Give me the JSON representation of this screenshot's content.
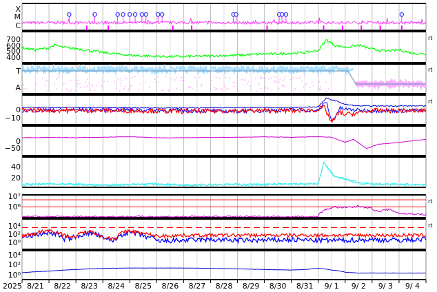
{
  "colors": {
    "xray": "#ff33ff",
    "mag_total": "#00ff00",
    "polarity_t": "#aadeff",
    "polarity_a": "#ffaaff",
    "bx": "#ff0000",
    "bz": "#0000ff",
    "bt": "#0000cc",
    "phi": "#cc00cc",
    "speed": "#00ffff",
    "proton": "#cc00cc",
    "electron_red": "#ff0000",
    "electron_blue": "#0000ff",
    "flux_line": "#0000cc",
    "flare_marker": "#3333ff",
    "event_bar": "#ff00ff",
    "threshold": "#ff0000"
  },
  "xaxis": {
    "year_label": "2025",
    "ticks": [
      "8/21",
      "8/22",
      "8/23",
      "8/24",
      "8/25",
      "8/26",
      "8/27",
      "8/28",
      "8/29",
      "8/30",
      "8/31",
      "9/ 1",
      "9/ 2",
      "9/ 3",
      "9/ 4"
    ]
  },
  "right_marker": "rt",
  "chart_data": [
    {
      "id": "xray",
      "type": "line",
      "ylabels": [
        "X",
        "M",
        "C"
      ],
      "flare_markers_day": [
        1.75,
        2.7,
        3.55,
        3.75,
        4.0,
        4.2,
        4.45,
        4.6,
        5.05,
        5.2,
        7.85,
        7.95,
        9.55,
        9.65,
        9.8,
        14.1
      ],
      "event_bars_day": [
        2.4,
        3.2,
        5.6,
        6.3,
        9.1,
        11.2,
        11.9,
        12.6,
        13.3,
        14.1
      ]
    },
    {
      "id": "mag_total",
      "type": "line",
      "ylabels": [
        "700",
        "600",
        "500",
        "400"
      ],
      "ylim": [
        300,
        760
      ],
      "series": [
        {
          "x": [
            0,
            0.5,
            1,
            1.2,
            1.5,
            2,
            2.5,
            3,
            3.5,
            4,
            4.5,
            5,
            5.5,
            6,
            6.5,
            7,
            7.5,
            8,
            8.5,
            9,
            9.5,
            10,
            10.5,
            11,
            11.3,
            11.6,
            12,
            12.5,
            13,
            13.5,
            14,
            14.5,
            15
          ],
          "y": [
            520,
            490,
            520,
            560,
            530,
            510,
            480,
            450,
            430,
            410,
            400,
            395,
            390,
            390,
            395,
            400,
            405,
            410,
            420,
            430,
            430,
            440,
            450,
            480,
            640,
            560,
            530,
            560,
            500,
            470,
            490,
            440,
            430
          ]
        }
      ]
    },
    {
      "id": "polarity",
      "type": "line",
      "ylabels": [
        "T",
        "A"
      ],
      "series": [
        {
          "name": "T",
          "x": [
            0,
            3,
            6,
            9,
            11,
            12.1,
            12.4,
            13,
            15
          ],
          "y": [
            1,
            1,
            1,
            1,
            1,
            1,
            0,
            0,
            0
          ]
        }
      ]
    },
    {
      "id": "bfield",
      "type": "line",
      "ylabels": [
        "0",
        "−10"
      ],
      "ylim": [
        -18,
        20
      ],
      "series": [
        {
          "name": "Bt",
          "x": [
            0,
            2,
            4,
            6,
            8,
            10,
            11,
            11.3,
            11.7,
            12,
            12.5,
            13,
            14,
            15
          ],
          "y": [
            4,
            4,
            3.5,
            3.5,
            4,
            4,
            5,
            16,
            12,
            8,
            6,
            6,
            6,
            6
          ]
        },
        {
          "name": "Bz",
          "x": [
            0,
            2,
            4,
            6,
            8,
            10,
            11,
            11.3,
            11.5,
            11.8,
            12.2,
            13,
            14,
            15
          ],
          "y": [
            0,
            1,
            1,
            0,
            -1,
            1,
            0,
            12,
            -15,
            3,
            1,
            0,
            0,
            0
          ]
        },
        {
          "name": "Bx",
          "x": [
            0,
            2,
            4,
            6,
            8,
            10,
            11,
            11.2,
            11.5,
            11.8,
            12,
            12.5,
            13,
            14,
            15
          ],
          "y": [
            1,
            0,
            0,
            -1,
            0,
            0,
            1,
            5,
            -15,
            -2,
            -5,
            -3,
            0,
            0,
            0
          ]
        }
      ]
    },
    {
      "id": "phi",
      "type": "line",
      "ylabels": [
        "0",
        "−50"
      ],
      "ylim": [
        -90,
        55
      ],
      "series": [
        {
          "x": [
            0,
            1,
            2,
            3,
            4,
            5,
            6,
            7,
            8,
            9,
            10,
            11,
            11.5,
            12,
            12.3,
            12.8,
            13.2,
            13.6,
            14,
            15
          ],
          "y": [
            -2,
            -1,
            -2,
            0,
            3,
            -3,
            -2,
            -1,
            0,
            2,
            0,
            3,
            0,
            -25,
            -10,
            -55,
            -35,
            -30,
            -25,
            -10
          ]
        }
      ]
    },
    {
      "id": "speed",
      "type": "line",
      "ylabels": [
        "40",
        "20"
      ],
      "ylim": [
        0,
        55
      ],
      "series": [
        {
          "x": [
            0,
            1,
            2,
            3,
            4,
            5,
            6,
            7,
            8,
            9,
            10,
            11,
            11.2,
            11.6,
            12,
            12.5,
            13,
            14,
            15
          ],
          "y": [
            5,
            6,
            5,
            4,
            5,
            6,
            4,
            5,
            5,
            5,
            6,
            6,
            45,
            20,
            15,
            8,
            6,
            5,
            5
          ]
        }
      ]
    },
    {
      "id": "proton",
      "type": "line",
      "ylabels": [
        "10⁷",
        "10⁶"
      ],
      "yscale": "log",
      "ylim": [
        30000,
        50000000
      ],
      "threshold_values": [
        10000000,
        1000000
      ],
      "series": [
        {
          "x": [
            0,
            2,
            4,
            5,
            6,
            8,
            10,
            11,
            11.3,
            11.6,
            12,
            12.5,
            12.8,
            13.2,
            13.6,
            14,
            15
          ],
          "y": [
            40000,
            40000,
            40000,
            40000,
            40000,
            40000,
            40000,
            40000,
            400000,
            1000000,
            700000,
            1200000,
            900000,
            200000,
            400000,
            120000,
            80000
          ]
        }
      ]
    },
    {
      "id": "electron",
      "type": "line",
      "ylabels": [
        "10⁴",
        "10²",
        "10⁰"
      ],
      "yscale": "log",
      "ylim": [
        0.05,
        50000
      ],
      "threshold_value": 1000,
      "series": [
        {
          "name": "red",
          "x": [
            0,
            0.5,
            1,
            1.5,
            2,
            2.5,
            3,
            3.5,
            4,
            4.5,
            5,
            6,
            7,
            8,
            9,
            10,
            11,
            12,
            13,
            14,
            15
          ],
          "y": [
            20,
            60,
            300,
            30,
            15,
            150,
            10,
            8,
            200,
            60,
            20,
            30,
            30,
            30,
            30,
            30,
            30,
            30,
            30,
            30,
            30
          ]
        },
        {
          "name": "blue",
          "x": [
            0,
            0.5,
            1,
            1.5,
            2,
            2.5,
            3,
            3.5,
            4,
            4.5,
            5,
            6,
            7,
            8,
            9,
            10,
            11,
            12,
            13,
            14,
            15
          ],
          "y": [
            10,
            30,
            100,
            5,
            10,
            80,
            5,
            3,
            100,
            20,
            2,
            3,
            4,
            3,
            3,
            4,
            3,
            3,
            4,
            3,
            5
          ]
        }
      ]
    },
    {
      "id": "flux",
      "type": "line",
      "ylabels": [
        "10⁴",
        "10²",
        "10⁰"
      ],
      "yscale": "log",
      "ylim": [
        0.01,
        300000
      ],
      "series": [
        {
          "x": [
            0,
            1,
            2,
            3,
            4,
            5,
            6,
            7,
            8,
            9,
            10,
            10.5,
            11,
            11.5,
            12,
            12.5,
            13,
            14,
            15
          ],
          "y": [
            0.6,
            1.5,
            4,
            8,
            10,
            10,
            10,
            8,
            6,
            4,
            3,
            4,
            8,
            3,
            0.8,
            0.5,
            0.5,
            0.5,
            0.5
          ]
        }
      ]
    }
  ]
}
